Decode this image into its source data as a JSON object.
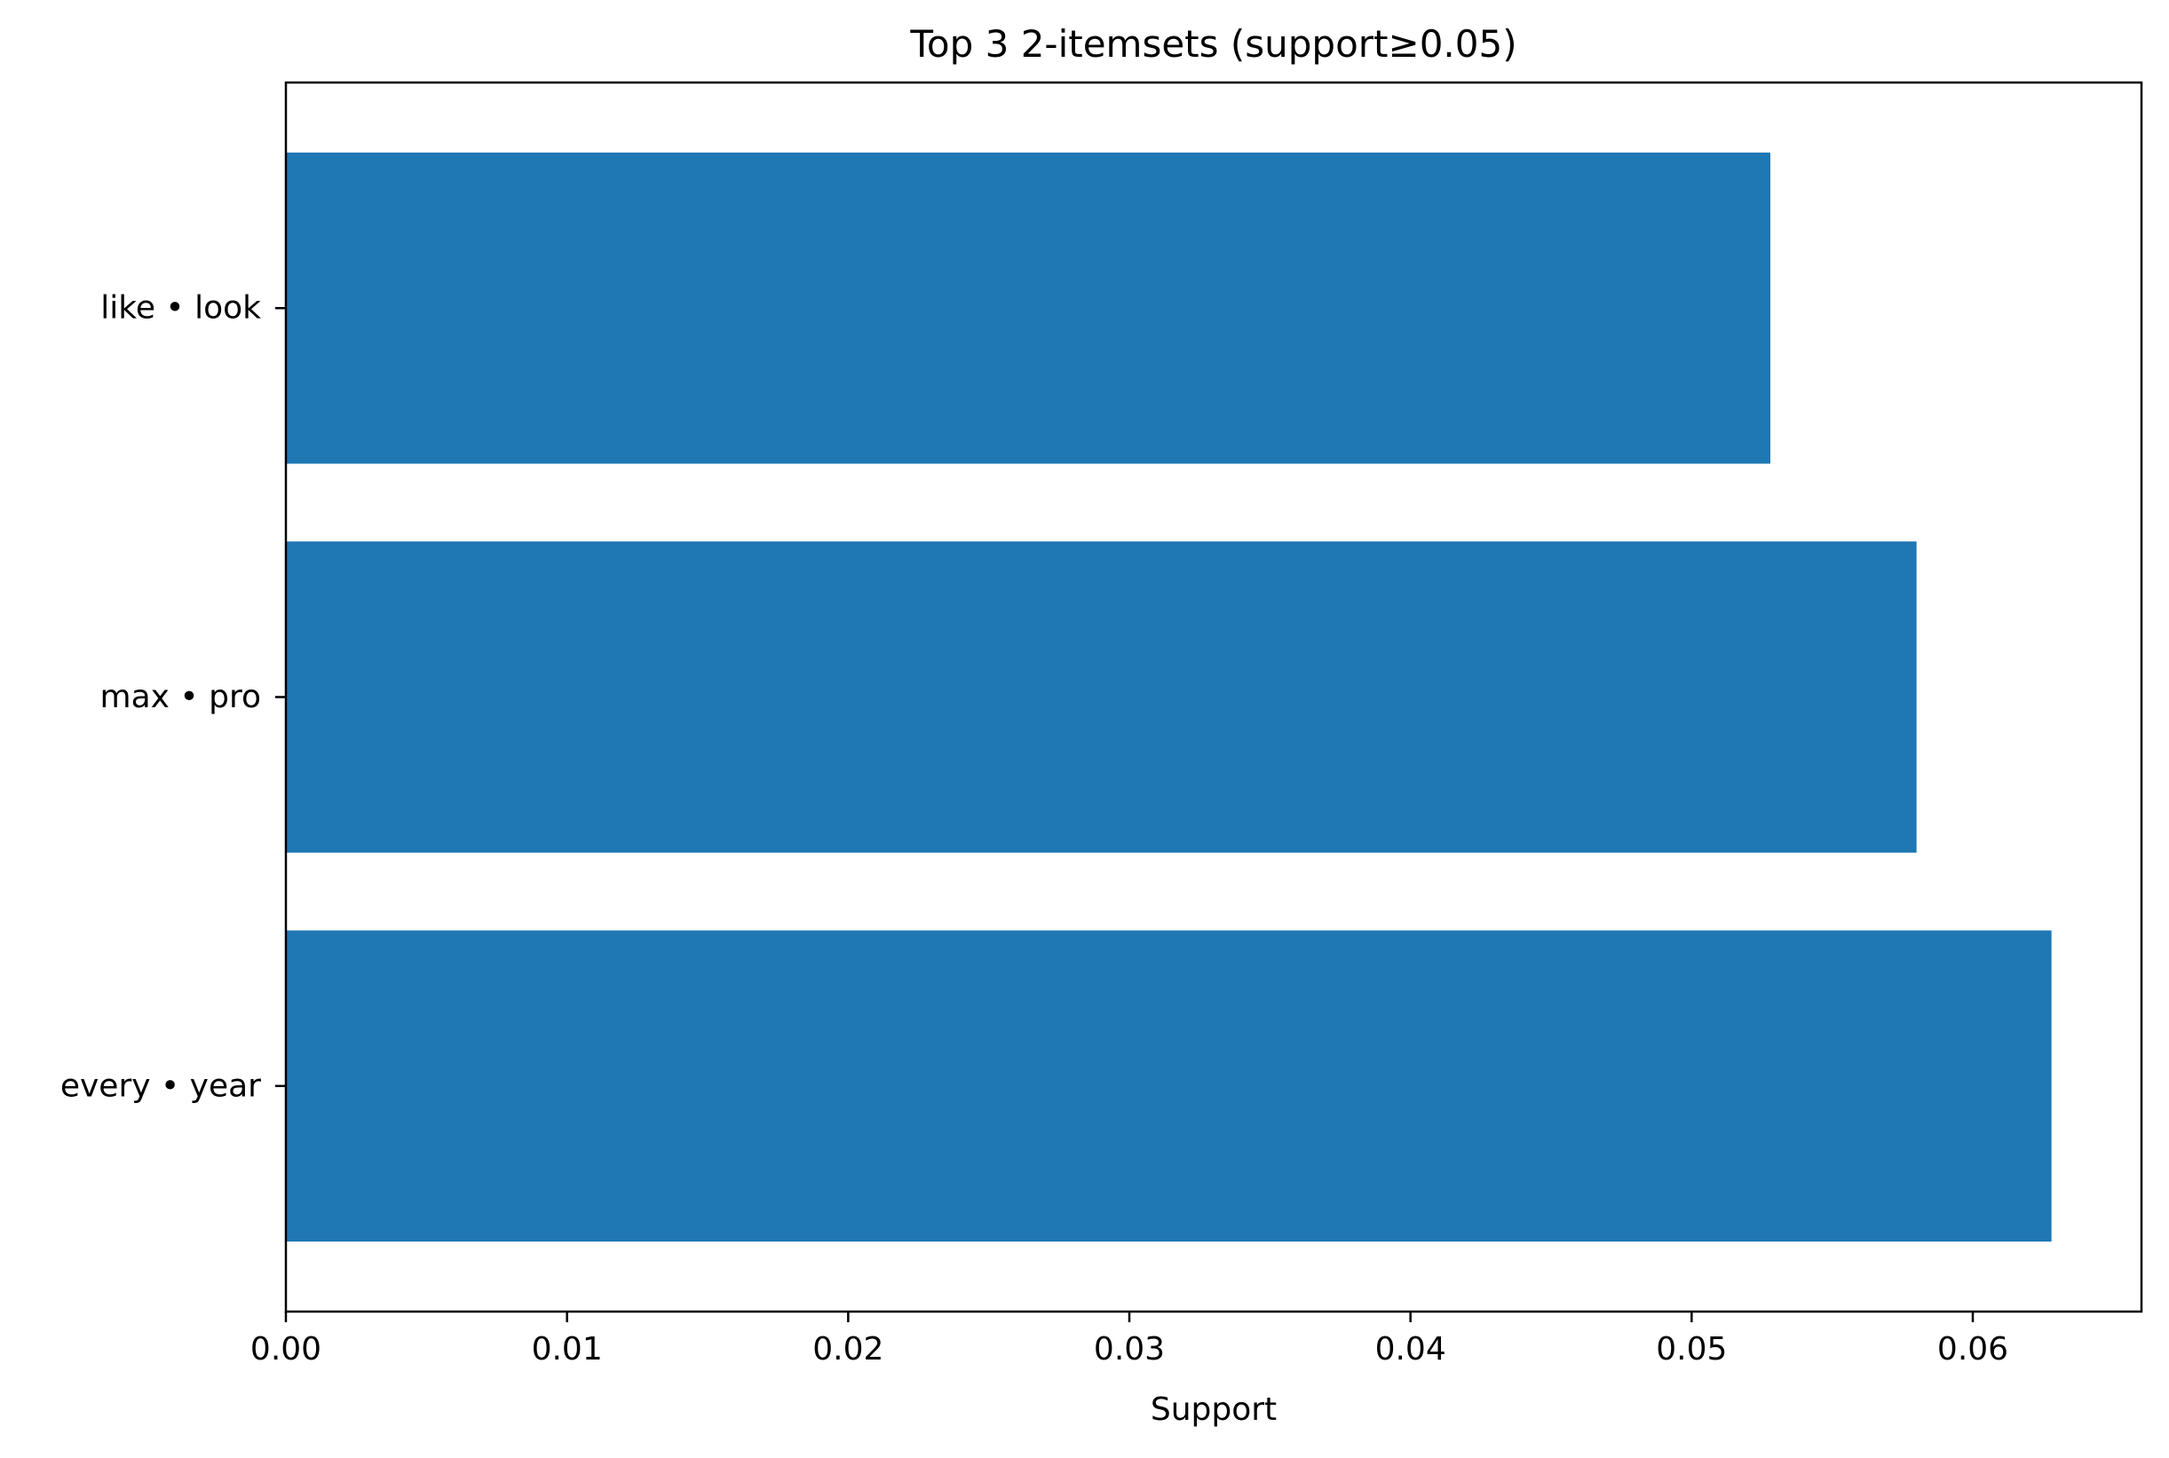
{
  "chart_data": {
    "type": "bar",
    "orientation": "horizontal",
    "title": "Top 3 2-itemsets (support≥0.05)",
    "xlabel": "Support",
    "ylabel": "",
    "categories": [
      "every • year",
      "max • pro",
      "like • look"
    ],
    "values": [
      0.0628,
      0.058,
      0.0528
    ],
    "xlim": [
      0,
      0.066
    ],
    "xticks": [
      0,
      0.01,
      0.02,
      0.03,
      0.04,
      0.05,
      0.06
    ],
    "xtick_labels": [
      "0.00",
      "0.01",
      "0.02",
      "0.03",
      "0.04",
      "0.05",
      "0.06"
    ],
    "bar_color": "#1f77b4",
    "grid": false,
    "legend": "none"
  }
}
